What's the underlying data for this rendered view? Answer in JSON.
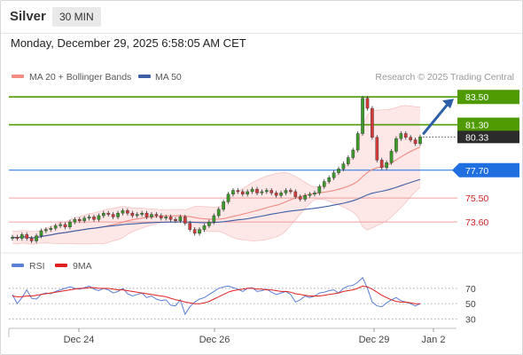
{
  "header": {
    "instrument": "Silver",
    "timeframe": "30 MIN",
    "datetime": "Monday, December 29, 2025 6:58:05 AM CET"
  },
  "legend": {
    "ma20": "MA 20 + Bollinger Bands",
    "ma50": "MA 50",
    "ma20_color": "#f28b82",
    "ma50_color": "#3d5fa6",
    "watermark": "Research © 2025 Trading Central"
  },
  "rsi_legend": {
    "rsi": "RSI",
    "ma": "9MA",
    "rsi_color": "#5b7fd6",
    "ma_color": "#e02020"
  },
  "chart_data": [
    {
      "type": "candlestick",
      "title": "Silver",
      "ylim": [
        71.5,
        84.5
      ],
      "x_ticks": [
        "Dec 24",
        "Dec 26",
        "Dec 29",
        "Jan 2"
      ],
      "close_series": [
        72.4,
        72.3,
        72.6,
        72.3,
        72.1,
        72.5,
        72.9,
        73.0,
        73.1,
        73.3,
        73.4,
        73.2,
        73.6,
        73.8,
        73.7,
        73.9,
        74.0,
        73.8,
        74.1,
        74.3,
        74.2,
        74.0,
        74.3,
        74.5,
        74.3,
        74.1,
        74.2,
        74.3,
        74.0,
        74.2,
        74.1,
        73.9,
        74.0,
        73.8,
        73.7,
        74.0,
        73.5,
        73.0,
        72.7,
        73.0,
        73.3,
        73.6,
        74.1,
        74.6,
        75.2,
        75.8,
        76.1,
        76.0,
        75.8,
        76.0,
        76.2,
        75.9,
        76.0,
        76.1,
        75.9,
        75.7,
        75.9,
        76.1,
        76.0,
        75.6,
        75.4,
        75.7,
        75.8,
        75.9,
        76.4,
        76.8,
        77.1,
        77.5,
        77.8,
        78.2,
        78.7,
        79.3,
        80.6,
        83.4,
        82.6,
        80.3,
        78.5,
        77.9,
        78.3,
        79.2,
        80.2,
        80.6,
        80.3,
        80.1,
        79.8,
        80.33
      ],
      "levels": [
        {
          "label": "83.50",
          "value": 83.5,
          "kind": "resistance",
          "color": "#4f9a00"
        },
        {
          "label": "81.30",
          "value": 81.3,
          "kind": "resistance",
          "color": "#4f9a00"
        },
        {
          "label": "80.33",
          "value": 80.33,
          "kind": "last-price",
          "color": "#2b2b2b"
        },
        {
          "label": "77.70",
          "value": 77.7,
          "kind": "pivot",
          "color": "#1f6fe0"
        },
        {
          "label": "75.50",
          "value": 75.5,
          "kind": "support",
          "color": "#cc2222"
        },
        {
          "label": "73.60",
          "value": 73.6,
          "kind": "support",
          "color": "#cc2222"
        }
      ],
      "forecast": {
        "from": 80.33,
        "to": 83.5
      }
    },
    {
      "type": "line",
      "title": "RSI",
      "ylim": [
        20,
        85
      ],
      "y_ticks": [
        "70",
        "50",
        "30"
      ],
      "guide_lines": [
        70,
        50,
        30
      ],
      "series": [
        {
          "name": "RSI",
          "values": [
            62,
            50,
            58,
            68,
            57,
            56,
            62,
            64,
            63,
            66,
            68,
            70,
            72,
            70,
            69,
            71,
            73,
            69,
            67,
            70,
            68,
            64,
            66,
            70,
            63,
            60,
            62,
            64,
            58,
            60,
            56,
            54,
            55,
            48,
            47,
            55,
            36,
            46,
            52,
            56,
            58,
            62,
            66,
            70,
            72,
            73,
            71,
            69,
            66,
            70,
            71,
            66,
            67,
            69,
            65,
            62,
            64,
            66,
            62,
            52,
            55,
            60,
            58,
            60,
            64,
            65,
            67,
            68,
            64,
            70,
            73,
            74,
            78,
            84,
            70,
            52,
            47,
            46,
            51,
            55,
            58,
            54,
            52,
            50,
            47,
            50
          ]
        },
        {
          "name": "9MA",
          "values": [
            60,
            59,
            59,
            60,
            60,
            61,
            62,
            63,
            64,
            65,
            66,
            67,
            68,
            69,
            70,
            70,
            71,
            71,
            70,
            70,
            70,
            69,
            68,
            68,
            67,
            66,
            65,
            64,
            63,
            62,
            61,
            60,
            59,
            57,
            55,
            54,
            52,
            51,
            50,
            50,
            51,
            53,
            56,
            59,
            62,
            65,
            67,
            68,
            69,
            70,
            70,
            69,
            69,
            68,
            68,
            67,
            66,
            66,
            65,
            63,
            62,
            61,
            60,
            60,
            60,
            61,
            62,
            63,
            64,
            66,
            67,
            68,
            70,
            73,
            72,
            69,
            65,
            61,
            58,
            55,
            53,
            52,
            52,
            51,
            50,
            50
          ]
        }
      ]
    }
  ]
}
